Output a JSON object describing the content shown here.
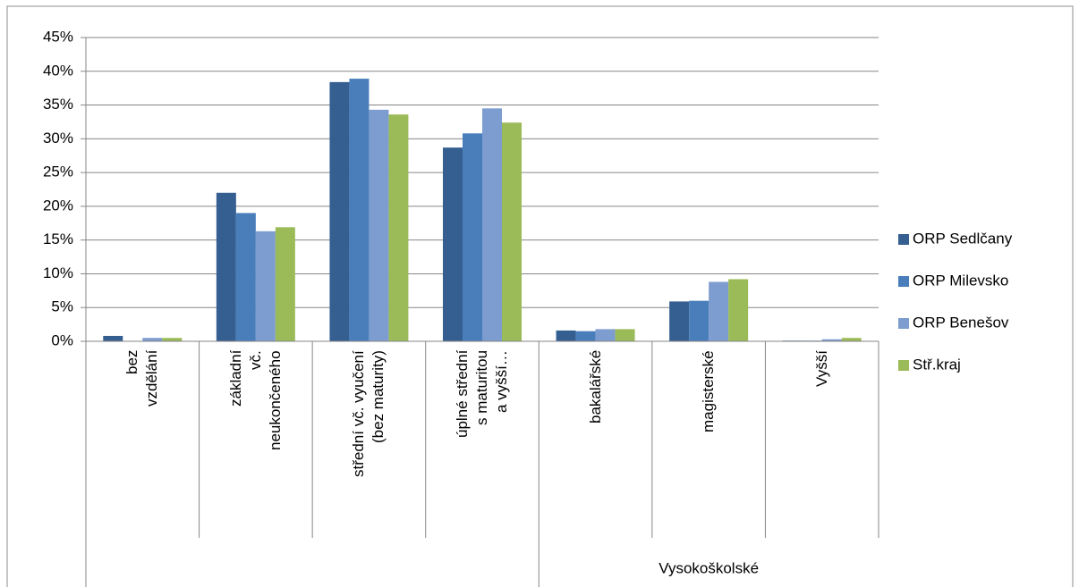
{
  "chart_data": {
    "type": "bar",
    "categories": [
      "bez\nvzdělání",
      "základní\nvč.\nneukončeného",
      "střední vč. vyučení\n(bez maturity)",
      "úplné střední\ns maturitou\na vyšší…",
      "bakalářské",
      "magisterské",
      "Vyšší"
    ],
    "category_groups": [
      {
        "label": "Vysokoškolské",
        "from": 4,
        "to": 6
      }
    ],
    "series": [
      {
        "name": "ORP Sedlčany",
        "color": "#355f91",
        "values": [
          0.8,
          22.0,
          38.4,
          28.7,
          1.6,
          5.9,
          0.1
        ]
      },
      {
        "name": "ORP Milevsko",
        "color": "#4a7ebb",
        "values": [
          0.0,
          19.0,
          38.9,
          30.8,
          1.5,
          6.0,
          0.1
        ]
      },
      {
        "name": "ORP Benešov",
        "color": "#7d9ccf",
        "values": [
          0.5,
          16.3,
          34.3,
          34.5,
          1.8,
          8.8,
          0.3
        ]
      },
      {
        "name": "Stř.kraj",
        "color": "#9bbb59",
        "values": [
          0.5,
          16.9,
          33.6,
          32.4,
          1.8,
          9.2,
          0.5
        ]
      }
    ],
    "ylim": [
      0,
      45
    ],
    "yticks": [
      {
        "value": 0,
        "label": "0%"
      },
      {
        "value": 5,
        "label": "5%"
      },
      {
        "value": 10,
        "label": "10%"
      },
      {
        "value": 15,
        "label": "15%"
      },
      {
        "value": 20,
        "label": "20%"
      },
      {
        "value": 25,
        "label": "25%"
      },
      {
        "value": 30,
        "label": "30%"
      },
      {
        "value": 35,
        "label": "35%"
      },
      {
        "value": 40,
        "label": "40%"
      },
      {
        "value": 45,
        "label": "45%"
      }
    ],
    "grid": true,
    "legend": "right"
  }
}
